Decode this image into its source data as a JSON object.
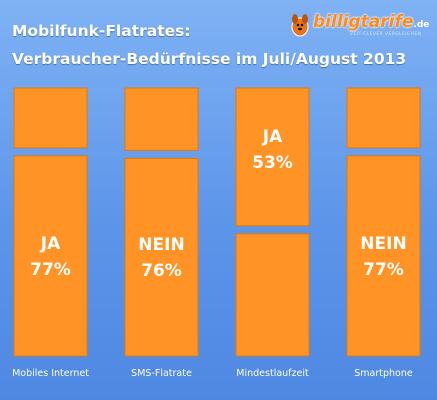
{
  "header": {
    "title_line1": "Mobilfunk-Flatrates:",
    "title_line2": "Verbraucher-Bedürfnisse im Juli/August 2013"
  },
  "logo": {
    "brand_part1": "billig",
    "brand_part2": "tarife",
    "brand_tld": ".de",
    "tagline": "ZEIT-CLEVER VERGLEICHEN",
    "icon": "dog-mascot-icon"
  },
  "colors": {
    "bar_fill": "#ff9326",
    "bar_stroke": "#e07808",
    "text": "#ffffff"
  },
  "chart_data": {
    "type": "bar",
    "orientation": "stacked-100",
    "categories": [
      "Mobiles Internet",
      "SMS-Flatrate",
      "Mindestlaufzeit",
      "Smartphone"
    ],
    "labeled_answer": [
      "JA",
      "NEIN",
      "JA",
      "NEIN"
    ],
    "labeled_percent": [
      "77%",
      "76%",
      "53%",
      "77%"
    ],
    "labeled_values": [
      77,
      76,
      53,
      77
    ],
    "labeled_position": [
      "bottom",
      "bottom",
      "top",
      "bottom"
    ],
    "ylim": [
      0,
      100
    ]
  }
}
